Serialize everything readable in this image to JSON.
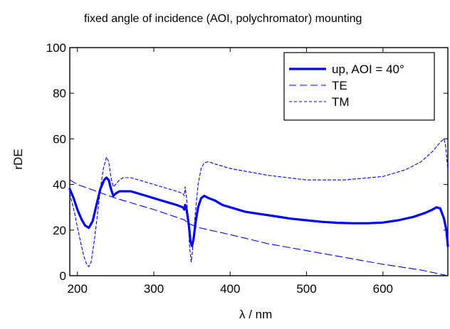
{
  "chart_data": {
    "type": "line",
    "title": "fixed angle of incidence (AOI, polychromator) mounting",
    "xlabel": "λ / nm",
    "ylabel": "rDE",
    "xlim": [
      190,
      685
    ],
    "ylim": [
      0,
      100
    ],
    "xticks": [
      200,
      300,
      400,
      500,
      600
    ],
    "yticks": [
      0,
      20,
      40,
      60,
      80,
      100
    ],
    "grid": false,
    "legend_position": "top-right",
    "series": [
      {
        "name": "up, AOI = 40°",
        "style": "solid-thick",
        "color": "#0000ff",
        "points": [
          [
            190,
            38
          ],
          [
            195,
            34
          ],
          [
            200,
            29
          ],
          [
            205,
            25
          ],
          [
            210,
            22
          ],
          [
            215,
            21
          ],
          [
            220,
            24
          ],
          [
            225,
            31
          ],
          [
            230,
            38
          ],
          [
            235,
            42
          ],
          [
            238,
            43
          ],
          [
            241,
            42
          ],
          [
            244,
            38
          ],
          [
            247,
            35
          ],
          [
            250,
            36
          ],
          [
            255,
            37
          ],
          [
            260,
            37
          ],
          [
            270,
            37
          ],
          [
            280,
            36
          ],
          [
            290,
            35
          ],
          [
            300,
            34
          ],
          [
            310,
            33
          ],
          [
            320,
            32
          ],
          [
            330,
            31
          ],
          [
            338,
            30
          ],
          [
            340,
            29
          ],
          [
            341,
            31
          ],
          [
            343,
            29
          ],
          [
            346,
            22
          ],
          [
            348,
            15
          ],
          [
            350,
            13
          ],
          [
            352,
            16
          ],
          [
            355,
            24
          ],
          [
            358,
            30
          ],
          [
            362,
            34
          ],
          [
            366,
            35
          ],
          [
            372,
            34
          ],
          [
            380,
            33
          ],
          [
            390,
            31
          ],
          [
            400,
            30
          ],
          [
            420,
            28
          ],
          [
            440,
            27
          ],
          [
            460,
            26
          ],
          [
            480,
            25
          ],
          [
            500,
            24.3
          ],
          [
            520,
            23.6
          ],
          [
            540,
            23.2
          ],
          [
            560,
            23
          ],
          [
            580,
            23
          ],
          [
            600,
            23.3
          ],
          [
            620,
            24.3
          ],
          [
            640,
            25.8
          ],
          [
            655,
            27.5
          ],
          [
            665,
            29
          ],
          [
            670,
            30
          ],
          [
            675,
            29.5
          ],
          [
            680,
            25
          ],
          [
            683,
            20
          ],
          [
            685,
            13
          ]
        ]
      },
      {
        "name": "TE",
        "style": "long-dash",
        "color": "#0000ff",
        "points": [
          [
            190,
            42
          ],
          [
            200,
            40
          ],
          [
            250,
            34
          ],
          [
            300,
            29
          ],
          [
            340,
            24.5
          ],
          [
            345,
            23
          ],
          [
            352,
            22
          ],
          [
            360,
            21
          ],
          [
            400,
            18
          ],
          [
            450,
            14
          ],
          [
            500,
            11
          ],
          [
            550,
            8
          ],
          [
            600,
            5
          ],
          [
            650,
            2.5
          ],
          [
            685,
            0
          ]
        ]
      },
      {
        "name": "TM",
        "style": "short-dash",
        "color": "#0000ff",
        "points": [
          [
            190,
            36
          ],
          [
            196,
            28
          ],
          [
            202,
            18
          ],
          [
            208,
            9
          ],
          [
            212,
            5
          ],
          [
            215,
            4
          ],
          [
            218,
            6
          ],
          [
            222,
            15
          ],
          [
            226,
            26
          ],
          [
            230,
            38
          ],
          [
            234,
            47
          ],
          [
            238,
            52
          ],
          [
            241,
            50
          ],
          [
            244,
            43
          ],
          [
            247,
            39
          ],
          [
            250,
            40
          ],
          [
            255,
            42
          ],
          [
            260,
            43
          ],
          [
            270,
            43
          ],
          [
            280,
            42
          ],
          [
            290,
            41
          ],
          [
            300,
            40
          ],
          [
            310,
            39
          ],
          [
            320,
            38
          ],
          [
            330,
            37
          ],
          [
            338,
            36
          ],
          [
            340,
            35
          ],
          [
            341,
            39
          ],
          [
            343,
            34
          ],
          [
            345,
            24
          ],
          [
            347,
            12
          ],
          [
            349,
            6
          ],
          [
            351,
            12
          ],
          [
            354,
            26
          ],
          [
            358,
            40
          ],
          [
            362,
            47
          ],
          [
            366,
            49.5
          ],
          [
            372,
            50
          ],
          [
            380,
            49
          ],
          [
            400,
            47
          ],
          [
            450,
            44
          ],
          [
            500,
            42
          ],
          [
            550,
            42
          ],
          [
            600,
            43.5
          ],
          [
            630,
            46.5
          ],
          [
            650,
            50
          ],
          [
            665,
            54.5
          ],
          [
            675,
            58.5
          ],
          [
            680,
            60
          ],
          [
            682,
            57
          ],
          [
            684,
            50
          ],
          [
            685,
            46
          ]
        ]
      }
    ]
  }
}
